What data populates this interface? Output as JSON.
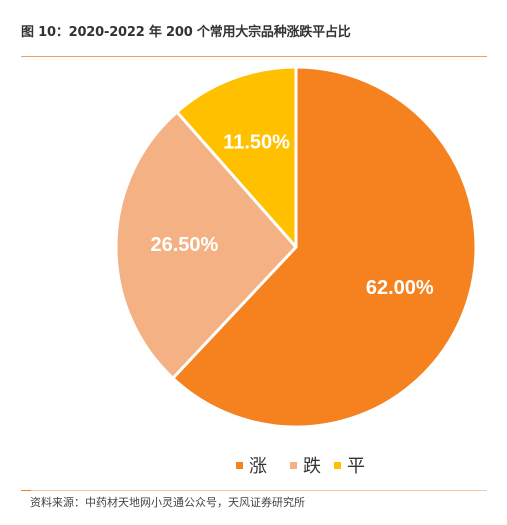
{
  "figure": {
    "title": "图 10：2020-2022 年 200 个常用大宗品种涨跌平占比",
    "source": "资料来源：中药材天地网小灵通公众号，天风证券研究所"
  },
  "chart_data": {
    "type": "pie",
    "title": "图 10：2020-2022 年 200 个常用大宗品种涨跌平占比",
    "start_angle_deg": 0,
    "direction": "clockwise",
    "legend_position": "bottom",
    "slices": [
      {
        "label": "涨",
        "value": 62.0,
        "display": "62.00%",
        "color": "#f5821f"
      },
      {
        "label": "跌",
        "value": 26.5,
        "display": "26.50%",
        "color": "#f4b183"
      },
      {
        "label": "平",
        "value": 11.5,
        "display": "11.50%",
        "color": "#ffc000"
      }
    ]
  }
}
